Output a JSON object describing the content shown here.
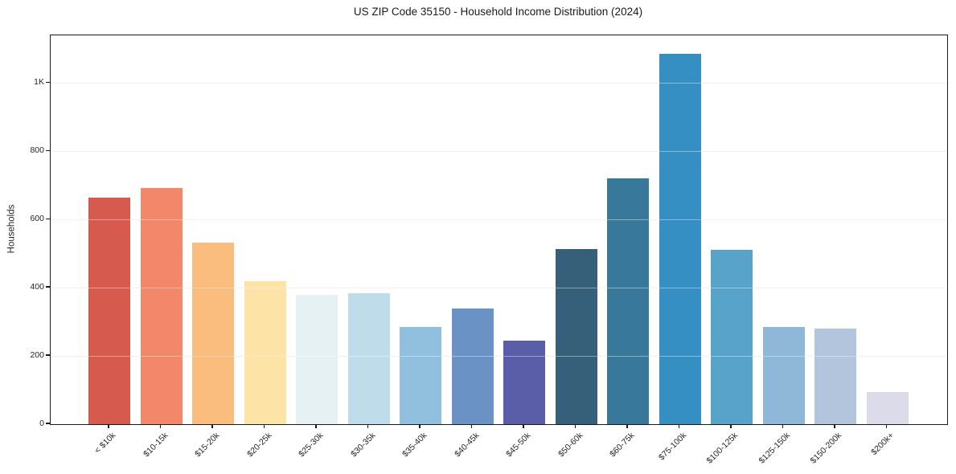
{
  "chart_data": {
    "type": "bar",
    "title": "US ZIP Code 35150 - Household Income Distribution (2024)",
    "xlabel": "",
    "ylabel": "Households",
    "categories": [
      "< $10k",
      "$10-15k",
      "$15-20k",
      "$20-25k",
      "$25-30k",
      "$30-35k",
      "$35-40k",
      "$40-45k",
      "$45-50k",
      "$50-60k",
      "$60-75k",
      "$75-100k",
      "$100-125k",
      "$125-150k",
      "$150-200k",
      "$200k+"
    ],
    "values": [
      665,
      692,
      533,
      420,
      379,
      385,
      284,
      339,
      246,
      513,
      720,
      1086,
      510,
      286,
      280,
      94
    ],
    "bar_colors": [
      "#d75a4e",
      "#f2876a",
      "#fabd7e",
      "#fde3a6",
      "#e6f1f4",
      "#bedce9",
      "#90c0dd",
      "#6a92c5",
      "#5a5ea9",
      "#36607a",
      "#38799b",
      "#368fc2",
      "#58a3c9",
      "#8fb7d7",
      "#b3c5dd",
      "#dbdbe9"
    ],
    "ylim": [
      0,
      1140
    ],
    "yticks": [
      0,
      200,
      400,
      600,
      800,
      1000
    ],
    "ytick_labels": [
      "0",
      "200",
      "400",
      "600",
      "800",
      "1K"
    ],
    "grid": "horizontal",
    "legend": false,
    "x_tick_rotation_deg": 45
  },
  "colors": {
    "background": "#ffffff",
    "spine": "#1a1a1a",
    "gridline": "#e9e9e9",
    "tick_text": "#262626",
    "title_text": "#1a1a1a"
  }
}
